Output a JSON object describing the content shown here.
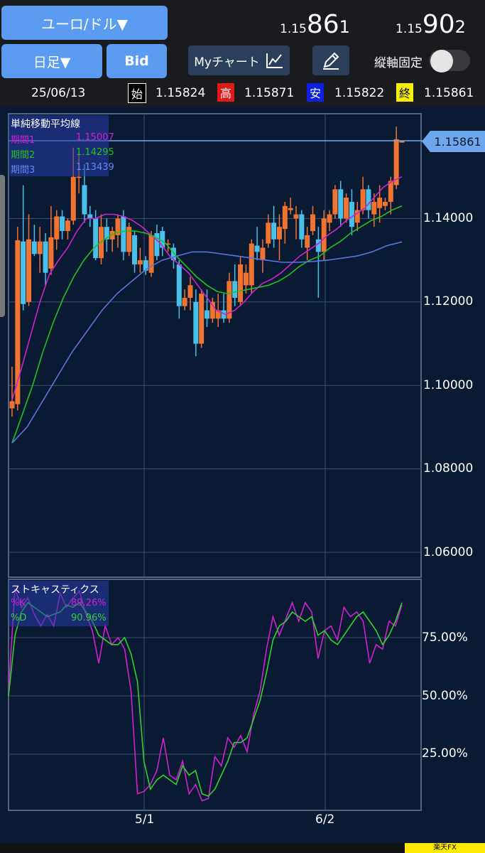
{
  "header": {
    "pair_button": "ユーロ/ドル▼",
    "period_button": "日足▼",
    "side_button": "Bid",
    "bid": {
      "small": "1.15",
      "big": "86",
      "mini": "1"
    },
    "ask": {
      "small": "1.15",
      "big": "90",
      "mini": "2"
    },
    "mychart_label": "Myチャート",
    "axis_lock_label": "縦軸固定",
    "axis_lock_on": false
  },
  "ohlc": {
    "date": "25/06/13",
    "open_tag": "始",
    "open": "1.15824",
    "high_tag": "高",
    "high": "1.15871",
    "low_tag": "安",
    "low": "1.15822",
    "close_tag": "終",
    "close": "1.15861"
  },
  "colors": {
    "up": "#f07330",
    "down": "#48c0e8",
    "ma1": "#d020d0",
    "ma2": "#20c020",
    "ma3": "#5577dd",
    "k": "#d020d0",
    "d": "#30d030",
    "grid": "#3f4f69"
  },
  "main_chart": {
    "current_price": "1.15861",
    "y_ticks": [
      "1.14000",
      "1.12000",
      "1.10000",
      "1.08000",
      "1.06000"
    ],
    "legend_title": "単純移動平均線",
    "legend_rows": [
      {
        "name": "期間1",
        "value": "1.15007"
      },
      {
        "name": "期間2",
        "value": "1.14295"
      },
      {
        "name": "期間3",
        "value": "1.13439"
      }
    ]
  },
  "stoch_chart": {
    "legend_title": "ストキャスティクス",
    "legend_rows": [
      {
        "name": "%K",
        "value": "89.26%"
      },
      {
        "name": "%D",
        "value": "90.96%"
      }
    ],
    "y_ticks": [
      "75.00%",
      "50.00%",
      "25.00%"
    ]
  },
  "x_ticks": [
    "5/1",
    "6/2"
  ],
  "footer": {
    "brand": "楽天FX"
  },
  "chart_data": [
    {
      "type": "candlestick",
      "ylim": [
        1.05,
        1.16
      ],
      "candles": [
        [
          1.0945,
          1.1045,
          1.0925,
          1.0962
        ],
        [
          1.0955,
          1.138,
          1.094,
          1.1348
        ],
        [
          1.1345,
          1.148,
          1.118,
          1.1195
        ],
        [
          1.12,
          1.141,
          1.119,
          1.135
        ],
        [
          1.1345,
          1.1385,
          1.131,
          1.1315
        ],
        [
          1.1315,
          1.138,
          1.127,
          1.1345
        ],
        [
          1.1345,
          1.1365,
          1.124,
          1.127
        ],
        [
          1.128,
          1.143,
          1.1265,
          1.1355
        ],
        [
          1.135,
          1.142,
          1.1325,
          1.1405
        ],
        [
          1.1405,
          1.142,
          1.135,
          1.137
        ],
        [
          1.137,
          1.14,
          1.135,
          1.1395
        ],
        [
          1.1395,
          1.157,
          1.1385,
          1.15
        ],
        [
          1.15,
          1.156,
          1.146,
          1.15
        ],
        [
          1.148,
          1.153,
          1.139,
          1.141
        ],
        [
          1.141,
          1.143,
          1.138,
          1.14
        ],
        [
          1.14,
          1.142,
          1.13,
          1.1305
        ],
        [
          1.1305,
          1.141,
          1.129,
          1.138
        ],
        [
          1.138,
          1.14,
          1.132,
          1.135
        ],
        [
          1.135,
          1.138,
          1.132,
          1.137
        ],
        [
          1.136,
          1.141,
          1.133,
          1.14
        ],
        [
          1.1405,
          1.142,
          1.13,
          1.132
        ],
        [
          1.132,
          1.139,
          1.131,
          1.138
        ],
        [
          1.136,
          1.137,
          1.127,
          1.129
        ],
        [
          1.129,
          1.133,
          1.127,
          1.13
        ],
        [
          1.13,
          1.131,
          1.1265,
          1.1275
        ],
        [
          1.127,
          1.137,
          1.126,
          1.136
        ],
        [
          1.1365,
          1.1385,
          1.13,
          1.131
        ],
        [
          1.137,
          1.138,
          1.131,
          1.133
        ],
        [
          1.134,
          1.135,
          1.132,
          1.134
        ],
        [
          1.133,
          1.134,
          1.128,
          1.13
        ],
        [
          1.129,
          1.13,
          1.116,
          1.119
        ],
        [
          1.119,
          1.123,
          1.118,
          1.121
        ],
        [
          1.121,
          1.126,
          1.118,
          1.124
        ],
        [
          1.12,
          1.123,
          1.107,
          1.11
        ],
        [
          1.11,
          1.123,
          1.109,
          1.122
        ],
        [
          1.118,
          1.123,
          1.114,
          1.116
        ],
        [
          1.116,
          1.121,
          1.115,
          1.12
        ],
        [
          1.116,
          1.122,
          1.114,
          1.118
        ],
        [
          1.118,
          1.122,
          1.115,
          1.116
        ],
        [
          1.116,
          1.127,
          1.115,
          1.125
        ],
        [
          1.125,
          1.129,
          1.119,
          1.121
        ],
        [
          1.12,
          1.131,
          1.119,
          1.129
        ],
        [
          1.124,
          1.129,
          1.122,
          1.127
        ],
        [
          1.124,
          1.135,
          1.122,
          1.134
        ],
        [
          1.1335,
          1.138,
          1.13,
          1.132
        ],
        [
          1.13,
          1.135,
          1.127,
          1.133
        ],
        [
          1.134,
          1.141,
          1.133,
          1.139
        ],
        [
          1.139,
          1.143,
          1.133,
          1.135
        ],
        [
          1.135,
          1.141,
          1.13,
          1.138
        ],
        [
          1.1375,
          1.144,
          1.134,
          1.143
        ],
        [
          1.142,
          1.145,
          1.141,
          1.1425
        ],
        [
          1.14,
          1.143,
          1.135,
          1.141
        ],
        [
          1.141,
          1.142,
          1.133,
          1.135
        ],
        [
          1.133,
          1.138,
          1.13,
          1.136
        ],
        [
          1.137,
          1.143,
          1.136,
          1.141
        ],
        [
          1.135,
          1.138,
          1.121,
          1.132
        ],
        [
          1.132,
          1.142,
          1.13,
          1.14
        ],
        [
          1.139,
          1.142,
          1.137,
          1.141
        ],
        [
          1.141,
          1.148,
          1.14,
          1.147
        ],
        [
          1.147,
          1.149,
          1.138,
          1.14
        ],
        [
          1.14,
          1.146,
          1.139,
          1.145
        ],
        [
          1.144,
          1.147,
          1.136,
          1.138
        ],
        [
          1.139,
          1.144,
          1.137,
          1.142
        ],
        [
          1.142,
          1.15,
          1.141,
          1.147
        ],
        [
          1.147,
          1.148,
          1.14,
          1.142
        ],
        [
          1.141,
          1.146,
          1.138,
          1.144
        ],
        [
          1.1425,
          1.148,
          1.139,
          1.145
        ],
        [
          1.143,
          1.145,
          1.142,
          1.144
        ],
        [
          1.144,
          1.15,
          1.141,
          1.149
        ],
        [
          1.148,
          1.162,
          1.147,
          1.159
        ],
        [
          1.1582,
          1.1587,
          1.1582,
          1.1586
        ]
      ]
    },
    {
      "type": "line",
      "series": [
        {
          "name": "期間1",
          "values": [
            1.0965,
            1.104,
            1.112,
            1.12,
            1.1265,
            1.13,
            1.133,
            1.137,
            1.14,
            1.14,
            1.141,
            1.141,
            1.1405,
            1.1395,
            1.138,
            1.136,
            1.134,
            1.131,
            1.129,
            1.127,
            1.124,
            1.121,
            1.118,
            1.117,
            1.118,
            1.12,
            1.1225,
            1.1245,
            1.1255,
            1.127,
            1.129,
            1.131,
            1.1325,
            1.134,
            1.136,
            1.1375,
            1.1395,
            1.141,
            1.1425,
            1.145,
            1.1475,
            1.149,
            1.15
          ]
        },
        {
          "name": "期間2",
          "values": [
            1.0862,
            1.093,
            1.1,
            1.108,
            1.115,
            1.121,
            1.126,
            1.13,
            1.133,
            1.135,
            1.1365,
            1.137,
            1.137,
            1.1365,
            1.1355,
            1.134,
            1.131,
            1.1285,
            1.126,
            1.124,
            1.1225,
            1.122,
            1.1225,
            1.123,
            1.1235,
            1.124,
            1.125,
            1.1265,
            1.1285,
            1.13,
            1.131,
            1.133,
            1.1345,
            1.1365,
            1.138,
            1.1395,
            1.1405,
            1.142,
            1.143
          ]
        },
        {
          "name": "期間3",
          "values": [
            1.0862,
            1.09,
            1.096,
            1.102,
            1.108,
            1.113,
            1.118,
            1.122,
            1.125,
            1.128,
            1.13,
            1.131,
            1.132,
            1.132,
            1.1315,
            1.131,
            1.1305,
            1.13,
            1.1295,
            1.1295,
            1.1297,
            1.13,
            1.1305,
            1.131,
            1.132,
            1.1335,
            1.1344
          ]
        }
      ]
    },
    {
      "type": "line",
      "ylim": [
        0,
        100
      ],
      "series": [
        {
          "name": "%K",
          "values": [
            52,
            96,
            88,
            92,
            85,
            80,
            85,
            80,
            94,
            88,
            92,
            95,
            85,
            78,
            64,
            80,
            72,
            75,
            70,
            52,
            8,
            9,
            12,
            18,
            32,
            16,
            14,
            22,
            8,
            12,
            5,
            6,
            24,
            20,
            32,
            28,
            33,
            26,
            42,
            52,
            70,
            84,
            76,
            83,
            90,
            82,
            90,
            86,
            66,
            78,
            80,
            74,
            88,
            84,
            86,
            82,
            64,
            72,
            70,
            82,
            80,
            89
          ]
        },
        {
          "name": "%D",
          "values": [
            50,
            76,
            86,
            90,
            88,
            86,
            84,
            85,
            86,
            89,
            88,
            90,
            86,
            82,
            76,
            74,
            72,
            72,
            75,
            68,
            56,
            22,
            10,
            14,
            16,
            14,
            12,
            20,
            16,
            18,
            8,
            7,
            10,
            16,
            22,
            30,
            30,
            32,
            40,
            48,
            60,
            74,
            80,
            82,
            86,
            84,
            82,
            84,
            76,
            78,
            74,
            72,
            76,
            80,
            84,
            86,
            82,
            78,
            72,
            76,
            82,
            90
          ]
        }
      ]
    }
  ]
}
